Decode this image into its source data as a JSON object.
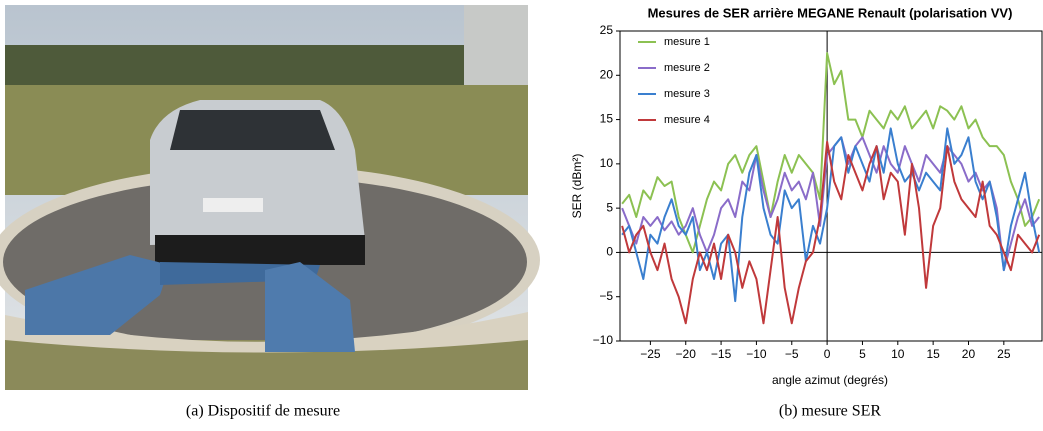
{
  "captions": [
    "(a)  Dispositif de mesure",
    "(b)  mesure SER"
  ],
  "chart_data": {
    "type": "line",
    "title": "Mesures de SER   arrière MEGANE Renault (polarisation VV)",
    "x_label": "angle azimut (degrés)",
    "y_label": "SER (dBm²)",
    "xlim": [
      -29.3,
      30.4
    ],
    "ylim": [
      -10,
      25
    ],
    "xticks": [
      {
        "value": -25,
        "label": "−25"
      },
      {
        "value": -20,
        "label": "−20"
      },
      {
        "value": -15,
        "label": "−15"
      },
      {
        "value": -10,
        "label": "−10"
      },
      {
        "value": -5,
        "label": "−5"
      },
      0,
      5,
      10,
      15,
      20,
      25
    ],
    "yticks": [
      {
        "value": -10,
        "label": "−10"
      },
      {
        "value": -5,
        "label": "−5"
      },
      0,
      5,
      10,
      15,
      20,
      25
    ],
    "legend": "upper left",
    "x": [
      -29,
      -28,
      -27,
      -26,
      -25,
      -24,
      -23,
      -22,
      -21,
      -20,
      -19,
      -18,
      -17,
      -16,
      -15,
      -14,
      -13,
      -12,
      -11,
      -10,
      -9,
      -8,
      -7,
      -6,
      -5,
      -4,
      -3,
      -2,
      -1,
      0,
      1,
      2,
      3,
      4,
      5,
      6,
      7,
      8,
      9,
      10,
      11,
      12,
      13,
      14,
      15,
      16,
      17,
      18,
      19,
      20,
      21,
      22,
      23,
      24,
      25,
      26,
      27,
      28,
      29,
      30
    ],
    "series": [
      {
        "name": "mesure 1",
        "color": "#8cc152",
        "values": [
          5.5,
          6.5,
          4,
          7,
          6,
          8.5,
          7.5,
          8,
          4,
          2,
          0,
          3,
          6,
          8,
          7,
          10,
          11,
          9,
          11,
          12,
          8,
          4,
          8,
          11,
          9,
          11,
          10,
          9,
          6,
          22.5,
          19,
          20.5,
          15,
          15,
          13,
          16,
          15,
          14,
          16,
          15,
          16.5,
          14,
          15,
          16,
          14,
          16.5,
          16,
          15,
          16.5,
          14,
          15,
          13,
          12,
          12,
          11,
          8,
          6,
          3,
          4,
          6
        ]
      },
      {
        "name": "mesure 2",
        "color": "#8a6cc9",
        "values": [
          5,
          3,
          1,
          4,
          3,
          4,
          2.5,
          3.5,
          2,
          3,
          5,
          2,
          0,
          2,
          5,
          6,
          4,
          8,
          7,
          11,
          7,
          4,
          6,
          9,
          7,
          8,
          6,
          9,
          3,
          11,
          12,
          13,
          10,
          12,
          13,
          11,
          9,
          12,
          10,
          9,
          12,
          10,
          8,
          11,
          10,
          9,
          12,
          11,
          10,
          8,
          9,
          7,
          8,
          5,
          -2,
          1,
          4,
          6,
          3,
          4
        ]
      },
      {
        "name": "mesure 3",
        "color": "#3a7fcf",
        "values": [
          2,
          3,
          0,
          -3,
          2,
          1,
          4,
          6,
          3,
          2,
          4,
          -2,
          0,
          -3,
          1,
          2,
          -5.5,
          4,
          9,
          11,
          5,
          2,
          1,
          7,
          5,
          6,
          -1,
          3,
          1,
          5,
          12,
          13,
          9,
          12,
          10,
          8,
          12,
          9,
          14,
          10,
          8,
          9,
          7,
          9,
          8,
          7,
          14,
          10,
          11,
          13,
          8,
          6,
          8,
          4,
          -2,
          3,
          6,
          9,
          4,
          0
        ]
      },
      {
        "name": "mesure 4",
        "color": "#c0393b",
        "values": [
          3,
          0,
          2,
          3,
          0,
          -2,
          1,
          -3,
          -5,
          -8,
          -3,
          0,
          -2,
          1,
          -3,
          2,
          0,
          -4,
          -1,
          -3,
          -8,
          -2,
          4,
          -4,
          -8,
          -4,
          -1,
          0,
          4,
          12.5,
          8,
          6,
          11,
          9,
          7,
          10,
          12,
          6,
          9,
          8,
          2,
          10,
          5,
          -4,
          3,
          5,
          12,
          8,
          6,
          5,
          4,
          8,
          3,
          2,
          0,
          -2,
          2,
          1,
          0,
          2
        ]
      }
    ]
  }
}
